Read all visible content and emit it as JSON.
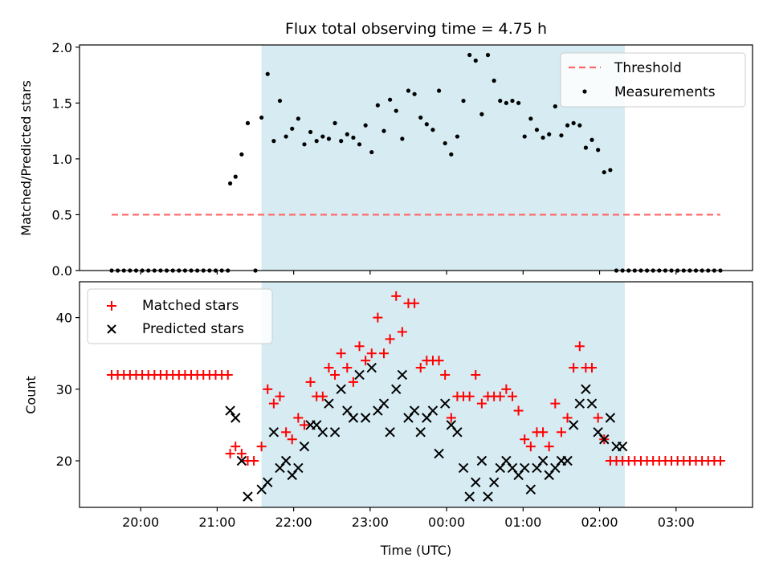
{
  "chart_data": [
    {
      "type": "scatter",
      "title": "Flux total observing time = 4.75 h",
      "xlabel": "",
      "ylabel": "Matched/Predicted stars",
      "ylim": [
        0,
        2.02
      ],
      "yticks": [
        "0.0",
        "0.5",
        "1.0",
        "1.5",
        "2.0"
      ],
      "ytick_values": [
        0,
        0.5,
        1.0,
        1.5,
        2.0
      ],
      "legend_placement": "upper right",
      "shaded_span": {
        "start": 21.58,
        "end": 26.33,
        "color": "#add8e6"
      },
      "threshold": {
        "name": "Threshold",
        "value": 0.5,
        "x_start": 19.62,
        "x_end": 27.58,
        "color": "#ff6666"
      },
      "series": [
        {
          "name": "Measurements",
          "color": "#000000",
          "x": [
            19.62,
            19.7,
            19.78,
            19.86,
            19.94,
            20.02,
            20.1,
            20.18,
            20.26,
            20.34,
            20.42,
            20.5,
            20.58,
            20.66,
            20.74,
            20.82,
            20.9,
            20.98,
            21.06,
            21.14,
            21.5,
            21.17,
            21.24,
            21.32,
            21.4,
            21.58,
            21.66,
            21.74,
            21.82,
            21.9,
            21.98,
            22.06,
            22.14,
            22.22,
            22.3,
            22.38,
            22.46,
            22.54,
            22.62,
            22.7,
            22.78,
            22.86,
            22.94,
            23.02,
            23.1,
            23.18,
            23.26,
            23.34,
            23.42,
            23.5,
            23.58,
            23.66,
            23.74,
            23.82,
            23.9,
            23.98,
            24.06,
            24.14,
            24.22,
            24.3,
            24.38,
            24.46,
            24.54,
            24.62,
            24.7,
            24.78,
            24.86,
            24.94,
            25.02,
            25.1,
            25.18,
            25.26,
            25.34,
            25.42,
            25.5,
            25.58,
            25.66,
            25.74,
            25.82,
            25.9,
            25.98,
            26.06,
            26.14,
            26.22,
            26.3,
            26.38,
            26.46,
            26.54,
            26.62,
            26.7,
            26.78,
            26.86,
            26.94,
            27.02,
            27.1,
            27.18,
            27.26,
            27.34,
            27.42,
            27.5,
            27.58
          ],
          "y": [
            0,
            0,
            0,
            0,
            0,
            0,
            0,
            0,
            0,
            0,
            0,
            0,
            0,
            0,
            0,
            0,
            0,
            0,
            0,
            0,
            0,
            0.78,
            0.84,
            1.04,
            1.32,
            1.37,
            1.76,
            1.16,
            1.52,
            1.2,
            1.27,
            1.36,
            1.13,
            1.24,
            1.16,
            1.2,
            1.18,
            1.32,
            1.16,
            1.22,
            1.19,
            1.13,
            1.3,
            1.06,
            1.48,
            1.25,
            1.53,
            1.43,
            1.18,
            1.61,
            1.58,
            1.37,
            1.31,
            1.26,
            1.61,
            1.14,
            1.04,
            1.2,
            1.52,
            1.93,
            1.88,
            1.4,
            1.93,
            1.7,
            1.52,
            1.5,
            1.52,
            1.5,
            1.2,
            1.36,
            1.26,
            1.19,
            1.22,
            1.47,
            1.21,
            1.3,
            1.32,
            1.3,
            1.1,
            1.17,
            1.08,
            0.88,
            0.9,
            0,
            0,
            0,
            0,
            0,
            0,
            0,
            0,
            0,
            0,
            0,
            0,
            0,
            0,
            0,
            0,
            0,
            0
          ]
        }
      ]
    },
    {
      "type": "scatter",
      "title": "",
      "xlabel": "Time (UTC)",
      "ylabel": "Count",
      "xlim": [
        19.2,
        28.0
      ],
      "ylim": [
        13.5,
        45
      ],
      "xticks": [
        "20:00",
        "21:00",
        "22:00",
        "23:00",
        "00:00",
        "01:00",
        "02:00",
        "03:00"
      ],
      "xtick_values": [
        20,
        21,
        22,
        23,
        24,
        25,
        26,
        27
      ],
      "yticks": [
        "20",
        "30",
        "40"
      ],
      "ytick_values": [
        20,
        30,
        40
      ],
      "legend_placement": "upper left",
      "shaded_span": {
        "start": 21.58,
        "end": 26.33,
        "color": "#add8e6"
      },
      "series": [
        {
          "name": "Matched stars",
          "marker": "+",
          "color": "#ff0000",
          "x": [
            19.62,
            19.7,
            19.78,
            19.86,
            19.94,
            20.02,
            20.1,
            20.18,
            20.26,
            20.34,
            20.42,
            20.5,
            20.58,
            20.66,
            20.74,
            20.82,
            20.9,
            20.98,
            21.06,
            21.14,
            21.17,
            21.24,
            21.32,
            21.4,
            21.48,
            21.58,
            21.66,
            21.74,
            21.82,
            21.9,
            21.98,
            22.06,
            22.14,
            22.22,
            22.3,
            22.38,
            22.46,
            22.54,
            22.62,
            22.7,
            22.78,
            22.86,
            22.94,
            23.02,
            23.1,
            23.18,
            23.26,
            23.34,
            23.42,
            23.5,
            23.58,
            23.66,
            23.74,
            23.82,
            23.9,
            23.98,
            24.06,
            24.14,
            24.22,
            24.3,
            24.38,
            24.46,
            24.54,
            24.62,
            24.7,
            24.78,
            24.86,
            24.94,
            25.02,
            25.1,
            25.18,
            25.26,
            25.34,
            25.42,
            25.5,
            25.58,
            25.66,
            25.74,
            25.82,
            25.9,
            25.98,
            26.06,
            26.14,
            26.22,
            26.3,
            26.38,
            26.46,
            26.54,
            26.62,
            26.7,
            26.78,
            26.86,
            26.94,
            27.02,
            27.1,
            27.18,
            27.26,
            27.34,
            27.42,
            27.5,
            27.58
          ],
          "y": [
            32,
            32,
            32,
            32,
            32,
            32,
            32,
            32,
            32,
            32,
            32,
            32,
            32,
            32,
            32,
            32,
            32,
            32,
            32,
            32,
            21,
            22,
            21,
            20,
            20,
            22,
            30,
            28,
            29,
            24,
            23,
            26,
            25,
            31,
            29,
            29,
            33,
            32,
            35,
            33,
            31,
            36,
            34,
            35,
            40,
            35,
            37,
            43,
            38,
            42,
            42,
            33,
            34,
            34,
            34,
            32,
            26,
            29,
            29,
            29,
            32,
            28,
            29,
            29,
            29,
            30,
            29,
            27,
            23,
            22,
            24,
            24,
            22,
            28,
            24,
            26,
            33,
            36,
            33,
            33,
            26,
            23,
            20,
            20,
            20,
            20,
            20,
            20,
            20,
            20,
            20,
            20,
            20,
            20,
            20,
            20,
            20,
            20,
            20,
            20,
            20
          ]
        },
        {
          "name": "Predicted stars",
          "marker": "x",
          "color": "#000000",
          "x": [
            21.17,
            21.24,
            21.32,
            21.4,
            21.58,
            21.66,
            21.74,
            21.82,
            21.9,
            21.98,
            22.06,
            22.14,
            22.22,
            22.3,
            22.38,
            22.46,
            22.54,
            22.62,
            22.7,
            22.78,
            22.86,
            22.94,
            23.02,
            23.1,
            23.18,
            23.26,
            23.34,
            23.42,
            23.5,
            23.58,
            23.66,
            23.74,
            23.82,
            23.9,
            23.98,
            24.06,
            24.14,
            24.22,
            24.3,
            24.38,
            24.46,
            24.54,
            24.62,
            24.7,
            24.78,
            24.86,
            24.94,
            25.02,
            25.1,
            25.18,
            25.26,
            25.34,
            25.42,
            25.5,
            25.58,
            25.66,
            25.74,
            25.82,
            25.9,
            25.98,
            26.06,
            26.14,
            26.22,
            26.3
          ],
          "y": [
            27,
            26,
            20,
            15,
            16,
            17,
            24,
            19,
            20,
            18,
            19,
            22,
            25,
            25,
            24,
            28,
            24,
            30,
            27,
            26,
            32,
            26,
            33,
            27,
            28,
            24,
            30,
            32,
            26,
            27,
            24,
            26,
            27,
            21,
            28,
            25,
            24,
            19,
            15,
            17,
            20,
            15,
            17,
            19,
            20,
            19,
            18,
            19,
            16,
            19,
            20,
            18,
            19,
            20,
            20,
            25,
            28,
            30,
            28,
            24,
            23,
            26,
            22,
            22
          ]
        }
      ]
    }
  ]
}
